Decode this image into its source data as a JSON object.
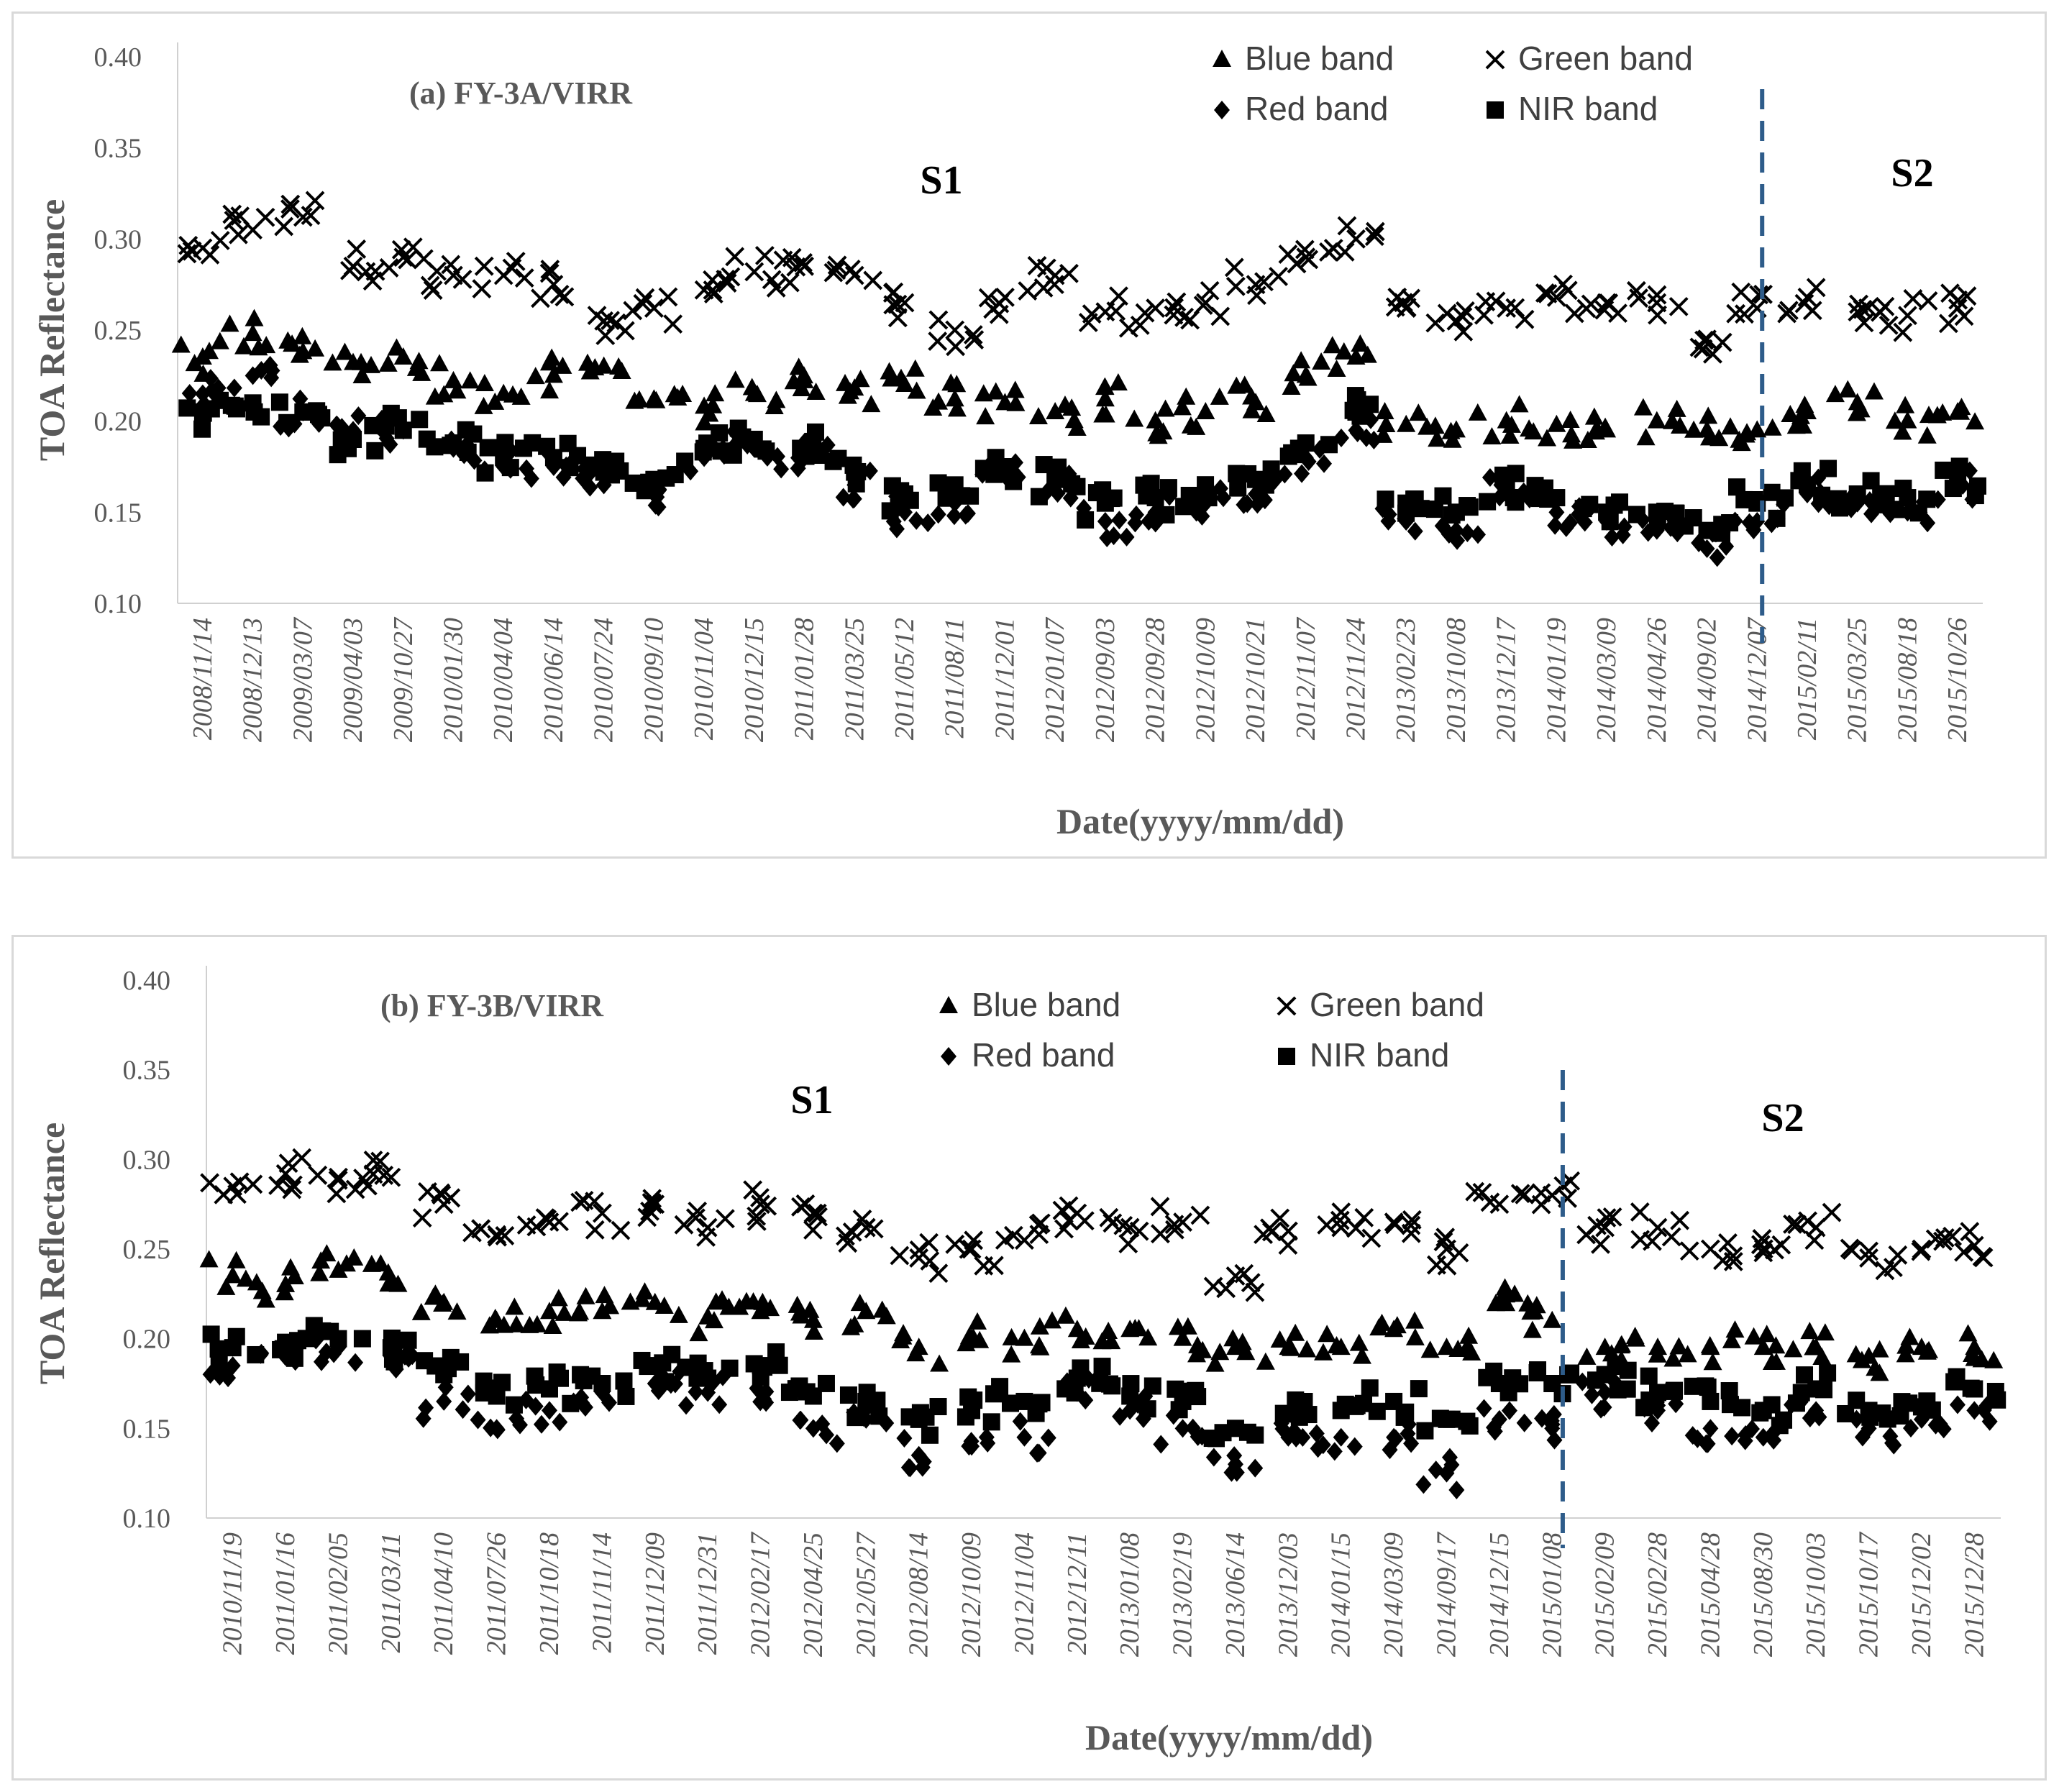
{
  "chart_data": [
    {
      "type": "scatter",
      "title": "(a) FY-3A/VIRR",
      "xlabel": "Date(yyyy/mm/dd)",
      "ylabel": "TOA Reflectance",
      "ylim": [
        0.1,
        0.4
      ],
      "yticks": [
        "0.10",
        "0.15",
        "0.20",
        "0.25",
        "0.30",
        "0.35",
        "0.40"
      ],
      "x_tick_labels": [
        "2008/11/14",
        "2008/12/13",
        "2009/03/07",
        "2009/04/03",
        "2009/10/27",
        "2010/01/30",
        "2010/04/04",
        "2010/06/14",
        "2010/07/24",
        "2010/09/10",
        "2010/11/04",
        "2010/12/15",
        "2011/01/28",
        "2011/03/25",
        "2011/05/12",
        "2011/08/11",
        "2011/12/01",
        "2012/01/07",
        "2012/09/03",
        "2012/09/28",
        "2012/10/09",
        "2012/10/21",
        "2012/11/07",
        "2012/11/24",
        "2013/02/23",
        "2013/10/08",
        "2013/12/17",
        "2014/01/19",
        "2014/03/09",
        "2014/04/26",
        "2014/09/02",
        "2014/12/07",
        "2015/02/11",
        "2015/03/25",
        "2015/08/18",
        "2015/10/26"
      ],
      "segment_labels": [
        {
          "text": "S1",
          "position": "center"
        },
        {
          "text": "S2",
          "position": "right"
        }
      ],
      "divider_after_index": 31.6,
      "legend": [
        "Blue band",
        "Green band",
        "Red band",
        "NIR band"
      ],
      "series": [
        {
          "name": "Blue band",
          "marker": "triangle",
          "values": [
            0.235,
            0.248,
            0.238,
            0.232,
            0.235,
            0.222,
            0.215,
            0.225,
            0.23,
            0.212,
            0.208,
            0.215,
            0.222,
            0.218,
            0.22,
            0.212,
            0.21,
            0.205,
            0.212,
            0.2,
            0.205,
            0.21,
            0.225,
            0.235,
            0.198,
            0.195,
            0.2,
            0.198,
            0.195,
            0.2,
            0.195,
            0.195,
            0.205,
            0.21,
            0.2,
            0.205
          ]
        },
        {
          "name": "Green band",
          "marker": "x",
          "values": [
            0.295,
            0.305,
            0.312,
            0.285,
            0.29,
            0.28,
            0.28,
            0.275,
            0.255,
            0.262,
            0.272,
            0.282,
            0.285,
            0.28,
            0.265,
            0.25,
            0.268,
            0.28,
            0.26,
            0.262,
            0.265,
            0.275,
            0.29,
            0.3,
            0.262,
            0.255,
            0.262,
            0.268,
            0.265,
            0.265,
            0.245,
            0.262,
            0.268,
            0.26,
            0.258,
            0.262
          ]
        },
        {
          "name": "Red band",
          "marker": "diamond",
          "values": [
            0.215,
            0.225,
            0.205,
            0.195,
            0.195,
            0.185,
            0.175,
            0.175,
            0.165,
            0.16,
            0.18,
            0.185,
            0.18,
            0.165,
            0.15,
            0.155,
            0.17,
            0.165,
            0.145,
            0.15,
            0.155,
            0.16,
            0.18,
            0.195,
            0.145,
            0.14,
            0.16,
            0.15,
            0.145,
            0.14,
            0.13,
            0.145,
            0.16,
            0.155,
            0.15,
            0.165
          ]
        },
        {
          "name": "NIR band",
          "marker": "square",
          "values": [
            0.205,
            0.21,
            0.205,
            0.19,
            0.195,
            0.188,
            0.18,
            0.18,
            0.172,
            0.168,
            0.185,
            0.19,
            0.185,
            0.172,
            0.16,
            0.165,
            0.175,
            0.168,
            0.155,
            0.158,
            0.16,
            0.168,
            0.188,
            0.205,
            0.155,
            0.15,
            0.165,
            0.158,
            0.15,
            0.15,
            0.14,
            0.155,
            0.165,
            0.16,
            0.158,
            0.168
          ]
        }
      ]
    },
    {
      "type": "scatter",
      "title": "(b) FY-3B/VIRR",
      "xlabel": "Date(yyyy/mm/dd)",
      "ylabel": "TOA Reflectance",
      "ylim": [
        0.1,
        0.4
      ],
      "yticks": [
        "0.10",
        "0.15",
        "0.20",
        "0.25",
        "0.30",
        "0.35",
        "0.40"
      ],
      "x_tick_labels": [
        "2010/11/19",
        "2011/01/16",
        "2011/02/05",
        "2011/03/11",
        "2011/04/10",
        "2011/07/26",
        "2011/10/18",
        "2011/11/14",
        "2011/12/09",
        "2011/12/31",
        "2012/02/17",
        "2012/04/25",
        "2012/05/27",
        "2012/08/14",
        "2012/10/09",
        "2012/11/04",
        "2012/12/11",
        "2013/01/08",
        "2013/02/19",
        "2013/06/14",
        "2013/12/03",
        "2014/01/15",
        "2014/03/09",
        "2014/09/17",
        "2014/12/15",
        "2015/01/08",
        "2015/02/09",
        "2015/02/28",
        "2015/04/28",
        "2015/08/30",
        "2015/10/03",
        "2015/10/17",
        "2015/12/02",
        "2015/12/28"
      ],
      "segment_labels": [
        {
          "text": "S1",
          "position": "left"
        },
        {
          "text": "S2",
          "position": "right"
        }
      ],
      "divider_after_index": 25.7,
      "legend": [
        "Blue band",
        "Green band",
        "Red band",
        "NIR band"
      ],
      "series": [
        {
          "name": "Blue band",
          "marker": "triangle",
          "values": [
            0.235,
            0.23,
            0.238,
            0.232,
            0.22,
            0.21,
            0.215,
            0.215,
            0.22,
            0.212,
            0.215,
            0.21,
            0.215,
            0.195,
            0.2,
            0.2,
            0.205,
            0.205,
            0.2,
            0.195,
            0.195,
            0.195,
            0.205,
            0.195,
            0.22,
            0.21,
            0.195,
            0.195,
            0.195,
            0.195,
            0.195,
            0.19,
            0.195,
            0.195
          ]
        },
        {
          "name": "Green band",
          "marker": "x",
          "values": [
            0.285,
            0.292,
            0.29,
            0.29,
            0.275,
            0.258,
            0.265,
            0.27,
            0.275,
            0.262,
            0.275,
            0.27,
            0.262,
            0.245,
            0.25,
            0.255,
            0.27,
            0.262,
            0.265,
            0.235,
            0.26,
            0.262,
            0.265,
            0.25,
            0.275,
            0.28,
            0.262,
            0.262,
            0.25,
            0.248,
            0.262,
            0.245,
            0.25,
            0.252
          ]
        },
        {
          "name": "Red band",
          "marker": "diamond",
          "values": [
            0.185,
            0.19,
            0.195,
            0.19,
            0.165,
            0.15,
            0.16,
            0.17,
            0.175,
            0.17,
            0.17,
            0.15,
            0.155,
            0.135,
            0.14,
            0.145,
            0.17,
            0.16,
            0.15,
            0.13,
            0.145,
            0.145,
            0.145,
            0.125,
            0.155,
            0.15,
            0.17,
            0.16,
            0.15,
            0.145,
            0.16,
            0.15,
            0.155,
            0.16
          ]
        },
        {
          "name": "NIR band",
          "marker": "square",
          "values": [
            0.195,
            0.198,
            0.2,
            0.195,
            0.18,
            0.168,
            0.172,
            0.175,
            0.185,
            0.178,
            0.185,
            0.168,
            0.165,
            0.155,
            0.16,
            0.165,
            0.178,
            0.168,
            0.165,
            0.15,
            0.158,
            0.16,
            0.165,
            0.155,
            0.175,
            0.175,
            0.18,
            0.17,
            0.165,
            0.16,
            0.172,
            0.16,
            0.162,
            0.172
          ]
        }
      ]
    }
  ]
}
